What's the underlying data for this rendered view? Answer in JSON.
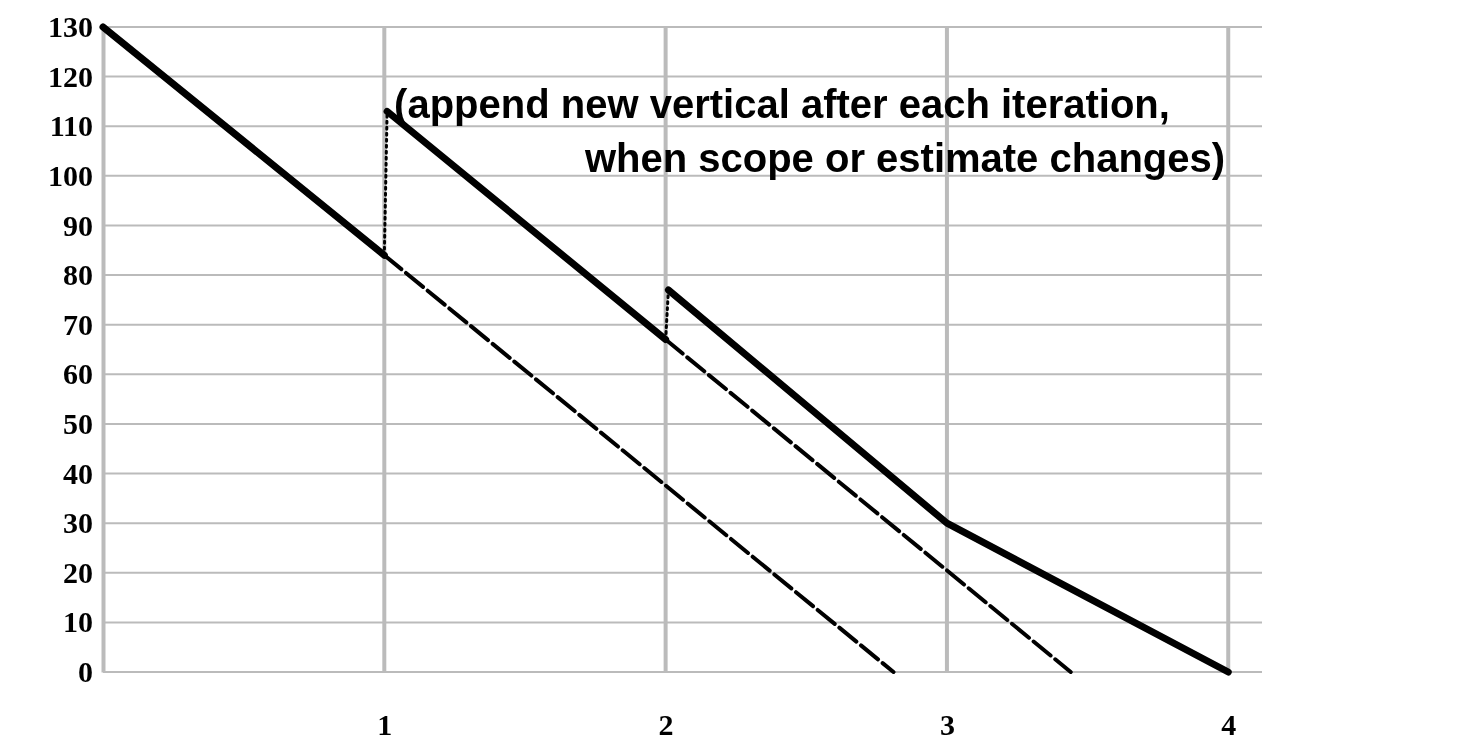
{
  "chart_data": {
    "type": "line",
    "xlim": [
      0,
      4.12
    ],
    "xticks": [
      1,
      2,
      3,
      4
    ],
    "ylim": [
      0,
      130
    ],
    "yticks": [
      0,
      10,
      20,
      30,
      40,
      50,
      60,
      70,
      80,
      90,
      100,
      110,
      120,
      130
    ],
    "grid": true,
    "marker": "none",
    "annotations": [
      "(append new vertical after each iteration,",
      "when scope or estimate changes)"
    ],
    "series": [
      {
        "color": "#000000",
        "line_style": "solid",
        "x": [
          0,
          1
        ],
        "values": [
          130,
          84
        ]
      },
      {
        "color": "#000000",
        "line_style": "solid",
        "x": [
          1.01,
          2
        ],
        "values": [
          113,
          67
        ]
      },
      {
        "color": "#000000",
        "line_style": "solid",
        "x": [
          2.01,
          3,
          4
        ],
        "values": [
          77,
          30,
          0
        ]
      },
      {
        "color": "#000000",
        "line_style": "dotted",
        "x": [
          1,
          1.01
        ],
        "values": [
          84,
          113
        ]
      },
      {
        "color": "#000000",
        "line_style": "dotted",
        "x": [
          2,
          2.01
        ],
        "values": [
          67,
          77
        ]
      },
      {
        "color": "#000000",
        "line_style": "dashed",
        "x": [
          1,
          2.81
        ],
        "values": [
          84,
          0
        ]
      },
      {
        "color": "#000000",
        "line_style": "dashed",
        "x": [
          2,
          3.44
        ],
        "values": [
          67,
          0
        ]
      }
    ]
  }
}
